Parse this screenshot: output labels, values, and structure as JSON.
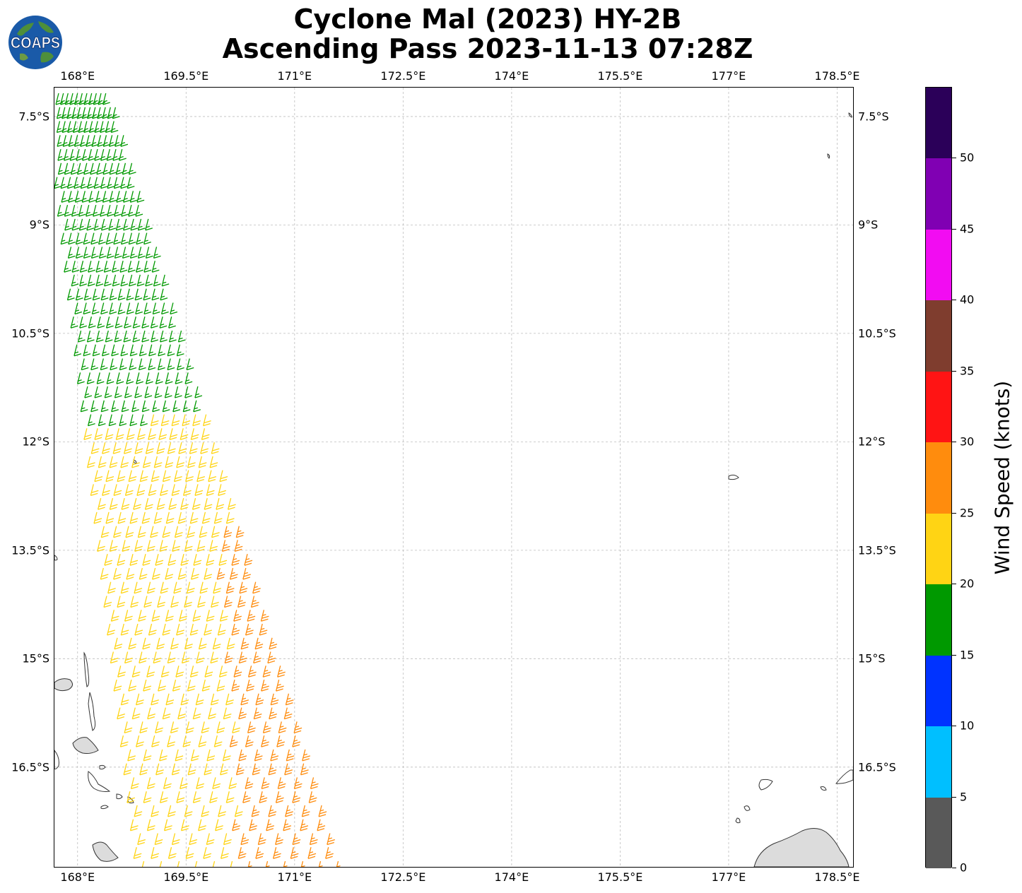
{
  "title": {
    "line1": "Cyclone Mal (2023) HY-2B",
    "line2": "Ascending Pass 2023-11-13 07:28Z"
  },
  "logo": {
    "text": "COAPS",
    "icon": "globe-logo"
  },
  "map": {
    "lon_range": [
      167.68,
      178.72
    ],
    "lat_range": [
      -7.1,
      -17.88
    ],
    "lon_ticks": [
      "168°E",
      "169.5°E",
      "171°E",
      "172.5°E",
      "174°E",
      "175.5°E",
      "177°E",
      "178.5°E"
    ],
    "lon_tick_values": [
      168,
      169.5,
      171,
      172.5,
      174,
      175.5,
      177,
      178.5
    ],
    "lat_ticks": [
      "7.5°S",
      "9°S",
      "10.5°S",
      "12°S",
      "13.5°S",
      "15°S",
      "16.5°S"
    ],
    "lat_tick_values": [
      -7.5,
      -9,
      -10.5,
      -12,
      -13.5,
      -15,
      -16.5
    ],
    "gridlines": true,
    "features": [
      "wind barbs along HY-2B swath",
      "Vanuatu islands",
      "Fiji islands"
    ]
  },
  "colorbar": {
    "title": "Wind Speed (knots)",
    "tick_labels": [
      "0",
      "5",
      "10",
      "15",
      "20",
      "25",
      "30",
      "35",
      "40",
      "45",
      "50"
    ],
    "colors": [
      "#595959",
      "#00bfff",
      "#0033ff",
      "#009900",
      "#ffd414",
      "#ff8c0d",
      "#ff1414",
      "#7f3d2e",
      "#f20cf2",
      "#8000b3",
      "#2b0059"
    ]
  },
  "chart_data": {
    "type": "wind-barb map",
    "variable": "Wind Speed (knots)",
    "swath": "ascending pass, roughly 168°E–171.5°E at its widest",
    "speed_bands_knots": [
      {
        "range": [
          15,
          20
        ],
        "region": "north of ~12°S (green barbs)"
      },
      {
        "range": [
          20,
          25
        ],
        "region": "12°S–17.9°S, western swath (yellow barbs)"
      },
      {
        "range": [
          25,
          30
        ],
        "region": "13°S–17.9°S, eastern swath (orange barbs)"
      }
    ]
  }
}
